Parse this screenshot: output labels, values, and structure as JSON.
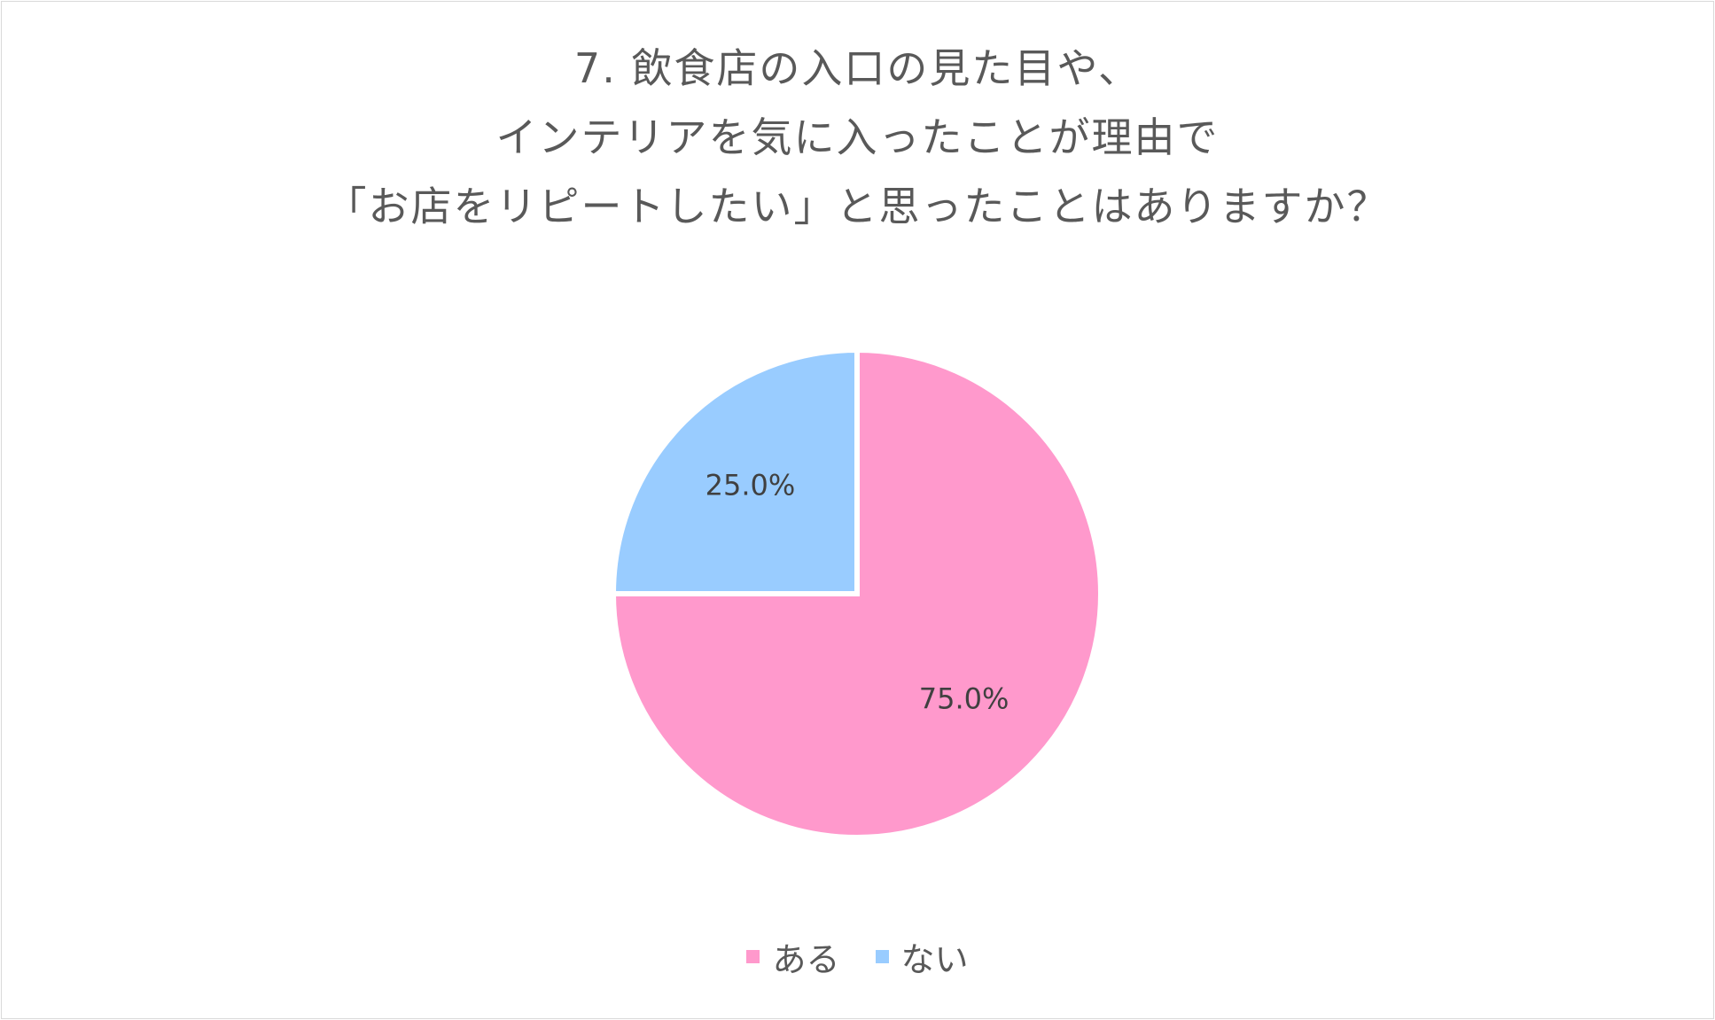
{
  "chart_data": {
    "type": "pie",
    "title_lines": [
      "7. 飲食店の入口の見た目や、",
      "インテリアを気に入ったことが理由で",
      "「お店をリピートしたい」と思ったことはありますか？"
    ],
    "slices": [
      {
        "label": "ある",
        "value": 75.0,
        "display": "75.0%",
        "color": "#FF99CC"
      },
      {
        "label": "ない",
        "value": 25.0,
        "display": "25.0%",
        "color": "#99CCFF"
      }
    ],
    "start_angle": "12 o'clock, clockwise",
    "legend_position": "bottom"
  }
}
